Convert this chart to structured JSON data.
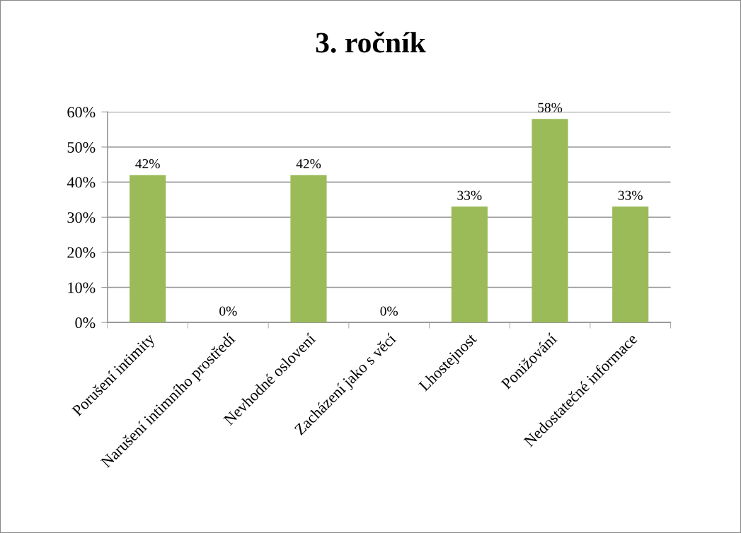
{
  "chart_data": {
    "type": "bar",
    "title": "3. ročník",
    "categories": [
      "Porušení intimity",
      "Narušení intimního prostředí",
      "Nevhodné oslovení",
      "Zacházení jako s věcí",
      "Lhostejnost",
      "Ponižování",
      "Nedostatečné informace"
    ],
    "values": [
      42,
      0,
      42,
      0,
      33,
      58,
      33
    ],
    "value_labels": [
      "42%",
      "0%",
      "42%",
      "0%",
      "33%",
      "58%",
      "33%"
    ],
    "color": "#9bbb59",
    "ylim": [
      0,
      60
    ],
    "yticks": [
      {
        "value": 0,
        "label": "0%"
      },
      {
        "value": 10,
        "label": "10%"
      },
      {
        "value": 20,
        "label": "20%"
      },
      {
        "value": 30,
        "label": "30%"
      },
      {
        "value": 40,
        "label": "40%"
      },
      {
        "value": 50,
        "label": "50%"
      },
      {
        "value": 60,
        "label": "60%"
      }
    ],
    "grid": "y"
  }
}
